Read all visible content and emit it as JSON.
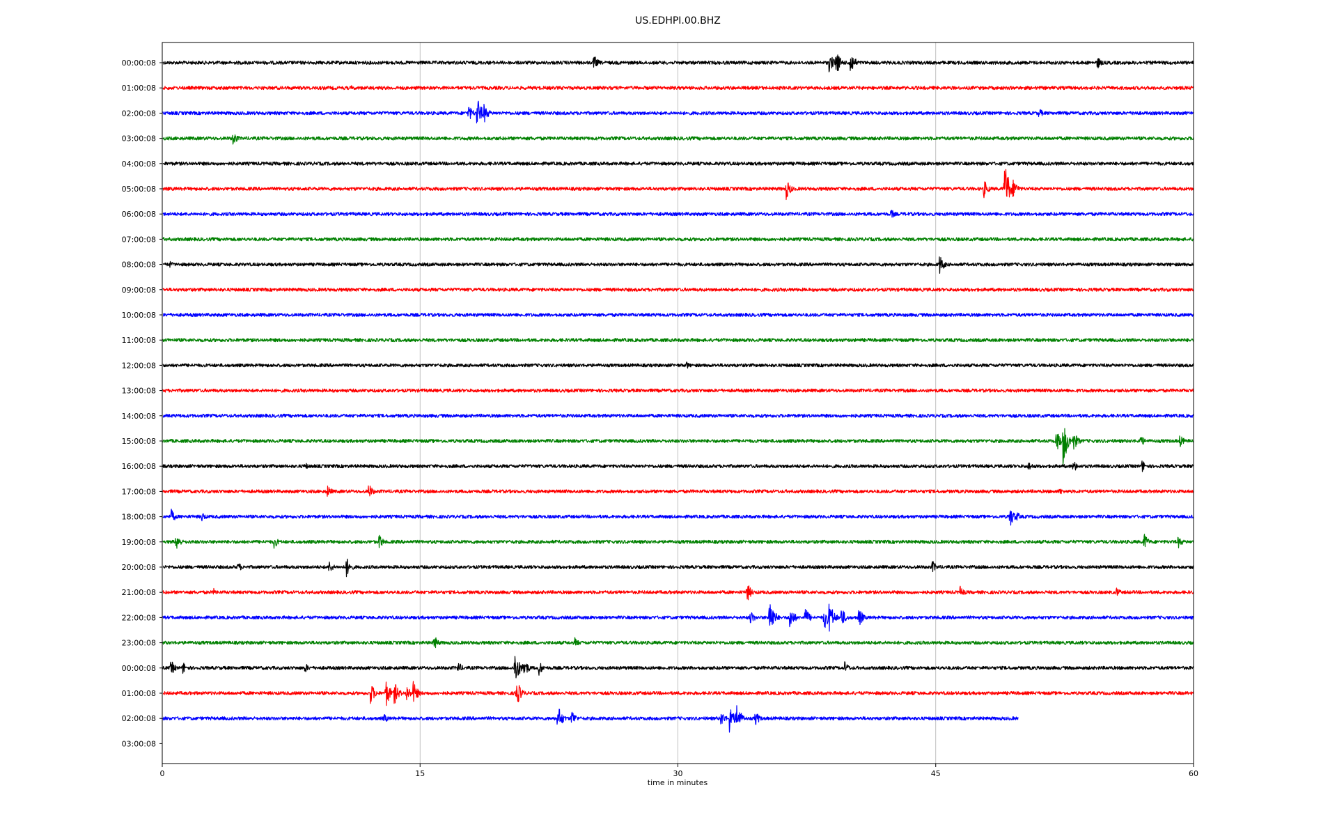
{
  "chart_data": {
    "type": "line",
    "title": "US.EDHPI.00.BHZ",
    "xlabel": "time in minutes",
    "ylabel": "",
    "xlim": [
      0,
      60
    ],
    "x_ticks": [
      "0",
      "15",
      "30",
      "45",
      "60"
    ],
    "x_tick_values": [
      0,
      15,
      30,
      45,
      60
    ],
    "grid": "vertical",
    "colors": [
      "#000000",
      "#ff0000",
      "#0000ff",
      "#008000"
    ],
    "row_labels": [
      "00:00:08",
      "01:00:08",
      "02:00:08",
      "03:00:08",
      "04:00:08",
      "05:00:08",
      "06:00:08",
      "07:00:08",
      "08:00:08",
      "09:00:08",
      "10:00:08",
      "11:00:08",
      "12:00:08",
      "13:00:08",
      "14:00:08",
      "15:00:08",
      "16:00:08",
      "17:00:08",
      "18:00:08",
      "19:00:08",
      "20:00:08",
      "21:00:08",
      "22:00:08",
      "23:00:08",
      "00:00:08",
      "01:00:08",
      "02:00:08",
      "03:00:08"
    ],
    "series": [
      {
        "color": "#000000",
        "end_minute": 60,
        "events": [
          {
            "t": 25.1,
            "a": 0.6
          },
          {
            "t": 38.8,
            "a": 0.8
          },
          {
            "t": 39.2,
            "a": 1.0
          },
          {
            "t": 40.0,
            "a": 1.1
          },
          {
            "t": 54.4,
            "a": 0.5
          }
        ]
      },
      {
        "color": "#ff0000",
        "end_minute": 60,
        "events": [
          {
            "t": 11.0,
            "a": 0.2
          }
        ]
      },
      {
        "color": "#0000ff",
        "end_minute": 60,
        "events": [
          {
            "t": 17.8,
            "a": 0.7
          },
          {
            "t": 18.3,
            "a": 1.3
          },
          {
            "t": 18.7,
            "a": 0.8
          },
          {
            "t": 51.0,
            "a": 0.4
          },
          {
            "t": 56.5,
            "a": 0.3
          }
        ]
      },
      {
        "color": "#008000",
        "end_minute": 60,
        "events": [
          {
            "t": 4.1,
            "a": 0.6
          }
        ]
      },
      {
        "color": "#000000",
        "end_minute": 60,
        "events": []
      },
      {
        "color": "#ff0000",
        "end_minute": 60,
        "events": [
          {
            "t": 36.3,
            "a": 0.8
          },
          {
            "t": 47.8,
            "a": 0.7
          },
          {
            "t": 49.0,
            "a": 2.2
          },
          {
            "t": 49.5,
            "a": 0.8
          }
        ]
      },
      {
        "color": "#0000ff",
        "end_minute": 60,
        "events": [
          {
            "t": 42.4,
            "a": 0.4
          }
        ]
      },
      {
        "color": "#008000",
        "end_minute": 60,
        "events": []
      },
      {
        "color": "#000000",
        "end_minute": 60,
        "events": [
          {
            "t": 0.4,
            "a": 0.3
          },
          {
            "t": 45.2,
            "a": 0.8
          }
        ]
      },
      {
        "color": "#ff0000",
        "end_minute": 60,
        "events": []
      },
      {
        "color": "#0000ff",
        "end_minute": 60,
        "events": []
      },
      {
        "color": "#008000",
        "end_minute": 60,
        "events": []
      },
      {
        "color": "#000000",
        "end_minute": 60,
        "events": [
          {
            "t": 30.5,
            "a": 0.3
          }
        ]
      },
      {
        "color": "#ff0000",
        "end_minute": 60,
        "events": []
      },
      {
        "color": "#0000ff",
        "end_minute": 60,
        "events": []
      },
      {
        "color": "#008000",
        "end_minute": 60,
        "events": [
          {
            "t": 52.0,
            "a": 0.9
          },
          {
            "t": 52.4,
            "a": 1.9
          },
          {
            "t": 53.0,
            "a": 0.8
          },
          {
            "t": 56.9,
            "a": 0.5
          },
          {
            "t": 59.2,
            "a": 0.5
          }
        ]
      },
      {
        "color": "#000000",
        "end_minute": 60,
        "events": [
          {
            "t": 8.3,
            "a": 0.3
          },
          {
            "t": 50.4,
            "a": 0.4
          },
          {
            "t": 53.0,
            "a": 0.5
          },
          {
            "t": 57.0,
            "a": 0.5
          }
        ]
      },
      {
        "color": "#ff0000",
        "end_minute": 60,
        "events": [
          {
            "t": 9.6,
            "a": 0.5
          },
          {
            "t": 12.0,
            "a": 0.6
          },
          {
            "t": 52.2,
            "a": 0.3
          }
        ]
      },
      {
        "color": "#0000ff",
        "end_minute": 60,
        "events": [
          {
            "t": 0.5,
            "a": 0.6
          },
          {
            "t": 2.3,
            "a": 0.4
          },
          {
            "t": 49.3,
            "a": 0.9
          },
          {
            "t": 49.7,
            "a": 0.4
          }
        ]
      },
      {
        "color": "#008000",
        "end_minute": 60,
        "events": [
          {
            "t": 0.8,
            "a": 0.7
          },
          {
            "t": 6.5,
            "a": 0.5
          },
          {
            "t": 12.6,
            "a": 0.6
          },
          {
            "t": 57.1,
            "a": 0.7
          },
          {
            "t": 59.1,
            "a": 0.5
          }
        ]
      },
      {
        "color": "#000000",
        "end_minute": 60,
        "events": [
          {
            "t": 4.4,
            "a": 0.4
          },
          {
            "t": 9.7,
            "a": 0.5
          },
          {
            "t": 10.7,
            "a": 0.8
          },
          {
            "t": 44.8,
            "a": 0.5
          }
        ]
      },
      {
        "color": "#ff0000",
        "end_minute": 60,
        "events": [
          {
            "t": 3.0,
            "a": 0.3
          },
          {
            "t": 34.0,
            "a": 0.8
          },
          {
            "t": 46.4,
            "a": 0.5
          },
          {
            "t": 55.5,
            "a": 0.4
          }
        ]
      },
      {
        "color": "#0000ff",
        "end_minute": 60,
        "events": [
          {
            "t": 34.2,
            "a": 0.6
          },
          {
            "t": 35.3,
            "a": 1.7
          },
          {
            "t": 36.5,
            "a": 1.0
          },
          {
            "t": 37.4,
            "a": 0.8
          },
          {
            "t": 38.5,
            "a": 1.0
          },
          {
            "t": 38.8,
            "a": 1.3
          },
          {
            "t": 39.5,
            "a": 0.8
          },
          {
            "t": 40.5,
            "a": 0.8
          }
        ]
      },
      {
        "color": "#008000",
        "end_minute": 60,
        "events": [
          {
            "t": 15.8,
            "a": 0.6
          },
          {
            "t": 24.0,
            "a": 0.4
          }
        ]
      },
      {
        "color": "#000000",
        "end_minute": 60,
        "events": [
          {
            "t": 0.5,
            "a": 0.6
          },
          {
            "t": 1.2,
            "a": 0.5
          },
          {
            "t": 8.3,
            "a": 0.4
          },
          {
            "t": 17.2,
            "a": 0.5
          },
          {
            "t": 20.5,
            "a": 1.4
          },
          {
            "t": 21.0,
            "a": 0.9
          },
          {
            "t": 21.9,
            "a": 0.6
          },
          {
            "t": 39.7,
            "a": 0.5
          }
        ]
      },
      {
        "color": "#ff0000",
        "end_minute": 60,
        "events": [
          {
            "t": 12.1,
            "a": 0.9
          },
          {
            "t": 13.0,
            "a": 1.1
          },
          {
            "t": 13.5,
            "a": 0.9
          },
          {
            "t": 14.2,
            "a": 0.7
          },
          {
            "t": 14.6,
            "a": 0.9
          },
          {
            "t": 20.6,
            "a": 1.1
          }
        ]
      },
      {
        "color": "#0000ff",
        "end_minute": 49.8,
        "events": [
          {
            "t": 12.9,
            "a": 0.4
          },
          {
            "t": 23.0,
            "a": 1.1
          },
          {
            "t": 23.8,
            "a": 0.7
          },
          {
            "t": 32.5,
            "a": 0.6
          },
          {
            "t": 33.0,
            "a": 1.1
          },
          {
            "t": 33.4,
            "a": 1.2
          },
          {
            "t": 34.5,
            "a": 0.6
          }
        ]
      }
    ]
  }
}
